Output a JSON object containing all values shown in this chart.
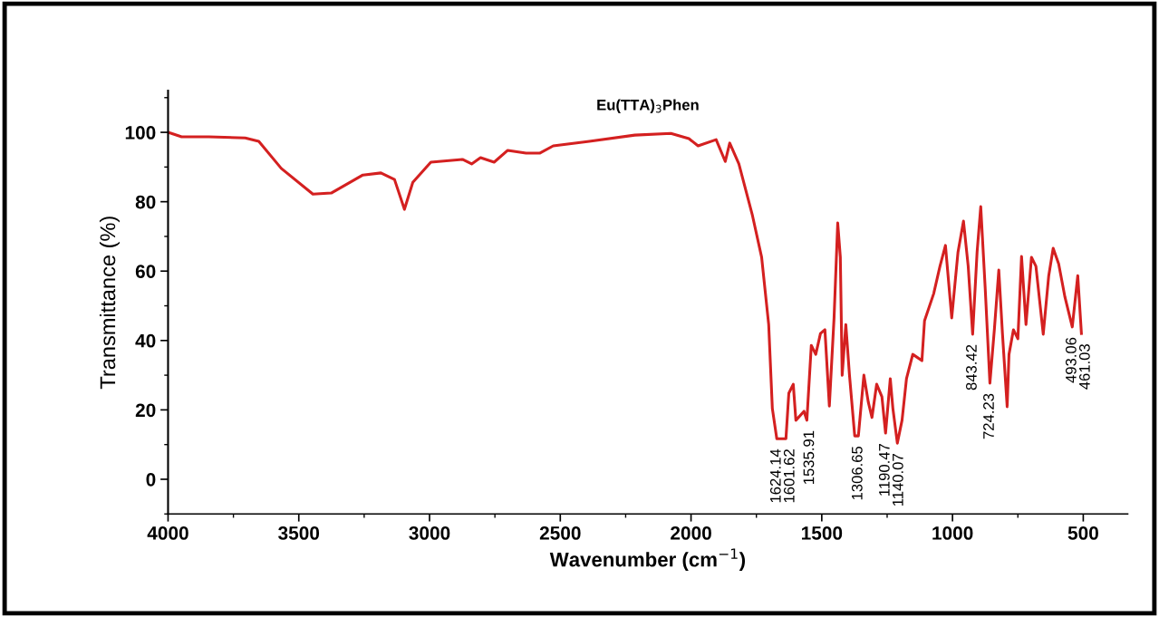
{
  "chart_data": {
    "type": "line",
    "title": "Eu(TTA)$_{3}$Phen",
    "xlabel": "Wavenumber (cm$^{−1}$)",
    "ylabel": "Transmittance (%)",
    "xlim": [
      4000,
      330
    ],
    "ylim": [
      -10,
      112
    ],
    "xticks": [
      4000,
      3500,
      3000,
      2500,
      2000,
      1500,
      1000,
      500
    ],
    "yticks": [
      0,
      20,
      40,
      60,
      80,
      100
    ],
    "grid": false,
    "marker": "none",
    "line_style": "solid",
    "series": [
      {
        "color": "#d42020",
        "x": [
          4000,
          3948,
          3844,
          3705,
          3653,
          3567,
          3446,
          3376,
          3255,
          3186,
          3134,
          3096,
          3064,
          2995,
          2874,
          2839,
          2805,
          2753,
          2701,
          2631,
          2579,
          2527,
          2389,
          2215,
          2077,
          2008,
          1973,
          1904,
          1869,
          1852,
          1817,
          1765,
          1730,
          1703,
          1689,
          1672,
          1637,
          1626,
          1609,
          1599,
          1568,
          1557,
          1540,
          1523,
          1505,
          1488,
          1471,
          1453,
          1439,
          1429,
          1422,
          1408,
          1394,
          1374,
          1360,
          1339,
          1322,
          1308,
          1290,
          1270,
          1256,
          1238,
          1228,
          1211,
          1193,
          1176,
          1152,
          1117,
          1107,
          1072,
          1048,
          1027,
          1003,
          979,
          958,
          940,
          923,
          906,
          892,
          875,
          857,
          840,
          823,
          809,
          791,
          784,
          767,
          750,
          736,
          719,
          698,
          681,
          653,
          632,
          615,
          594,
          570,
          542,
          521,
          507
        ],
        "values": [
          100,
          98.7,
          98.7,
          98.4,
          97.4,
          89.6,
          82.2,
          82.5,
          87.7,
          88.3,
          86.4,
          77.8,
          85.6,
          91.4,
          92.2,
          90.9,
          92.7,
          91.4,
          94.8,
          94,
          94,
          96.1,
          97.4,
          99.2,
          99.7,
          98.2,
          96.1,
          97.9,
          91.6,
          96.9,
          90.9,
          76.0,
          64.0,
          44.6,
          20.4,
          11.7,
          11.7,
          24.8,
          27.4,
          17.0,
          19.6,
          17.0,
          38.6,
          36.0,
          42.0,
          43.1,
          21.1,
          46.5,
          73.9,
          64.0,
          30.0,
          44.6,
          30.0,
          12.5,
          12.5,
          30.0,
          22.2,
          17.8,
          27.4,
          23.8,
          13.3,
          29.0,
          20.4,
          10.4,
          17.0,
          29.0,
          36.0,
          34.2,
          45.7,
          53.5,
          61.4,
          67.4,
          46.5,
          65.5,
          74.4,
          61.4,
          41.8,
          65.5,
          78.6,
          55.1,
          27.7,
          43.1,
          60.3,
          42.0,
          20.9,
          36.0,
          43.1,
          40.5,
          64.2,
          44.6,
          64.0,
          61.4,
          41.8,
          58.7,
          66.6,
          62.1,
          52.5,
          43.9,
          58.7,
          42.0
        ]
      }
    ],
    "annotations": [
      {
        "text": "1624.14",
        "x": 1672,
        "y": 11.7
      },
      {
        "text": "1601.62",
        "x": 1637,
        "y": 11.7
      },
      {
        "text": "1535.91",
        "x": 1545,
        "y": 17.0
      },
      {
        "text": "1306.65",
        "x": 1360,
        "y": 12.5
      },
      {
        "text": "1190.47",
        "x": 1256,
        "y": 13.3
      },
      {
        "text": "1140.07",
        "x": 1211,
        "y": 10.4
      },
      {
        "text": "843.42",
        "x": 923,
        "y": 41.8
      },
      {
        "text": "724.23",
        "x": 857,
        "y": 27.7
      },
      {
        "text": "493.06",
        "x": 542,
        "y": 43.9
      },
      {
        "text": "461.03",
        "x": 507,
        "y": 42.0
      }
    ]
  }
}
